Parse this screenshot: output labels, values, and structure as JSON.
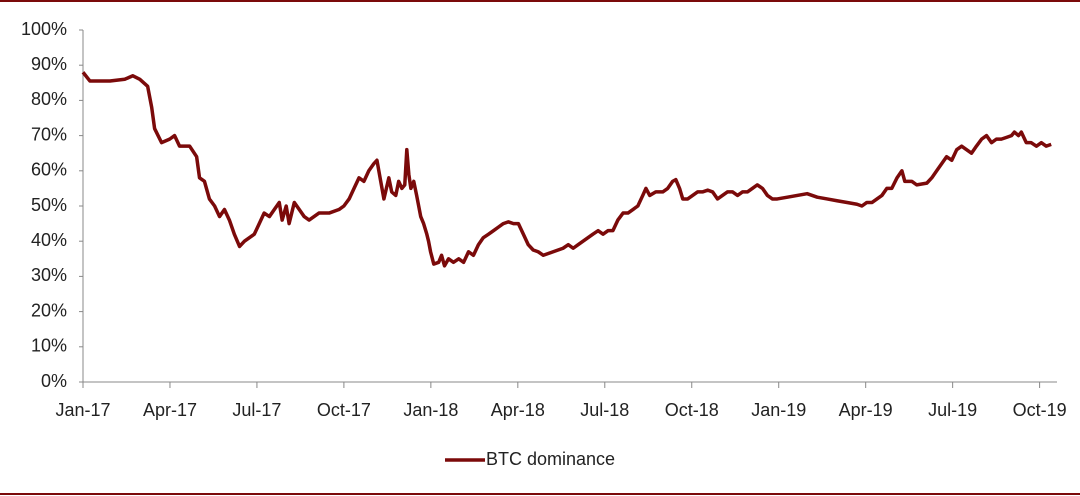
{
  "chart_data": {
    "type": "line",
    "x": [
      0,
      0.24,
      0.93,
      1.44,
      1.72,
      1.96,
      2.23,
      2.37,
      2.47,
      2.71,
      2.99,
      3.16,
      3.33,
      3.68,
      3.92,
      4.02,
      4.19,
      4.36,
      4.54,
      4.71,
      4.88,
      5.05,
      5.22,
      5.4,
      5.57,
      5.74,
      5.91,
      6.08,
      6.25,
      6.43,
      6.6,
      6.77,
      6.87,
      7.01,
      7.11,
      7.29,
      7.46,
      7.63,
      7.8,
      7.97,
      8.14,
      8.49,
      8.83,
      9.0,
      9.18,
      9.35,
      9.52,
      9.69,
      9.86,
      10.03,
      10.14,
      10.27,
      10.38,
      10.55,
      10.65,
      10.79,
      10.89,
      11.0,
      11.1,
      11.17,
      11.24,
      11.31,
      11.41,
      11.51,
      11.65,
      11.75,
      11.86,
      11.92,
      11.99,
      12.1,
      12.27,
      12.37,
      12.47,
      12.61,
      12.78,
      12.96,
      13.13,
      13.3,
      13.47,
      13.64,
      13.81,
      13.99,
      14.16,
      14.33,
      14.5,
      14.67,
      14.85,
      15.02,
      15.19,
      15.36,
      15.53,
      15.7,
      15.88,
      16.05,
      16.22,
      16.39,
      16.56,
      16.74,
      16.91,
      17.08,
      17.25,
      17.42,
      17.59,
      17.77,
      17.94,
      18.11,
      18.28,
      18.45,
      18.63,
      18.8,
      18.97,
      19.14,
      19.31,
      19.42,
      19.55,
      19.76,
      20.0,
      20.17,
      20.34,
      20.45,
      20.58,
      20.69,
      20.86,
      21.03,
      21.2,
      21.37,
      21.55,
      21.72,
      21.89,
      22.06,
      22.23,
      22.41,
      22.58,
      22.75,
      22.92,
      23.09,
      23.26,
      23.44,
      23.61,
      23.78,
      23.95,
      24.3,
      24.64,
      24.98,
      25.33,
      25.67,
      26.01,
      26.36,
      26.7,
      26.87,
      27.04,
      27.22,
      27.39,
      27.56,
      27.73,
      27.9,
      28.08,
      28.25,
      28.35,
      28.59,
      28.76,
      29.11,
      29.28,
      29.45,
      29.62,
      29.79,
      29.97,
      30.14,
      30.31,
      30.48,
      30.65,
      30.82,
      31.0,
      31.17,
      31.34,
      31.51,
      31.68,
      31.86,
      32.03,
      32.13,
      32.27,
      32.37,
      32.54,
      32.71,
      32.89,
      33.06,
      33.23,
      33.4
    ],
    "series": [
      {
        "name": "BTC dominance",
        "color": "#7b0a0a",
        "values": [
          88,
          85.5,
          85.5,
          86,
          87,
          86,
          84,
          78,
          72,
          68,
          69,
          70,
          67,
          67,
          64,
          58,
          57,
          52,
          50,
          47,
          49,
          46,
          42,
          38.5,
          40,
          41,
          42,
          45,
          48,
          47,
          49,
          51,
          46,
          50,
          45,
          51,
          49,
          47,
          46,
          47,
          48,
          48,
          49,
          50,
          52,
          55,
          58,
          57,
          60,
          62,
          63,
          57,
          52,
          58,
          54,
          53,
          57,
          55,
          56,
          66,
          59,
          55,
          57,
          53,
          47,
          45,
          42,
          40,
          37,
          33.5,
          34,
          36,
          33,
          35,
          34,
          35,
          34,
          37,
          36,
          39,
          41,
          42,
          43,
          44,
          45,
          45.5,
          45,
          45,
          42,
          39,
          37.5,
          37,
          36,
          36.5,
          37,
          37.5,
          38,
          39,
          38,
          39,
          40,
          41,
          42,
          43,
          42,
          43,
          43,
          46,
          48,
          48,
          49,
          50,
          53,
          55,
          53,
          54,
          54,
          55,
          57,
          57.5,
          55,
          52,
          52,
          53,
          54,
          54,
          54.5,
          54,
          52,
          53,
          54,
          54,
          53,
          54,
          54,
          55,
          56,
          55,
          53,
          52,
          52,
          52.5,
          53,
          53.5,
          52.5,
          52,
          51.5,
          51,
          50.5,
          50,
          51,
          51,
          52,
          53,
          55,
          55,
          58,
          60,
          57,
          57,
          56,
          56.5,
          58,
          60,
          62,
          64,
          63,
          66,
          67,
          66,
          65,
          67,
          69,
          70,
          68,
          69,
          69,
          69.5,
          70,
          71,
          70,
          71,
          68,
          68,
          67,
          68,
          67,
          67.5
        ]
      }
    ],
    "xlim": [
      0,
      33.6
    ],
    "xticks": [
      {
        "value": 0,
        "label": "Jan-17"
      },
      {
        "value": 3,
        "label": "Apr-17"
      },
      {
        "value": 6,
        "label": "Jul-17"
      },
      {
        "value": 9,
        "label": "Oct-17"
      },
      {
        "value": 12,
        "label": "Jan-18"
      },
      {
        "value": 15,
        "label": "Apr-18"
      },
      {
        "value": 18,
        "label": "Jul-18"
      },
      {
        "value": 21,
        "label": "Oct-18"
      },
      {
        "value": 24,
        "label": "Jan-19"
      },
      {
        "value": 27,
        "label": "Apr-19"
      },
      {
        "value": 30,
        "label": "Jul-19"
      },
      {
        "value": 33,
        "label": "Oct-19"
      }
    ],
    "ylim": [
      0,
      100
    ],
    "yticks": [
      {
        "value": 0,
        "label": "0%"
      },
      {
        "value": 10,
        "label": "10%"
      },
      {
        "value": 20,
        "label": "20%"
      },
      {
        "value": 30,
        "label": "30%"
      },
      {
        "value": 40,
        "label": "40%"
      },
      {
        "value": 50,
        "label": "50%"
      },
      {
        "value": 60,
        "label": "60%"
      },
      {
        "value": 70,
        "label": "70%"
      },
      {
        "value": 80,
        "label": "80%"
      },
      {
        "value": 90,
        "label": "90%"
      },
      {
        "value": 100,
        "label": "100%"
      }
    ],
    "grid": false,
    "legend": "bottom"
  }
}
